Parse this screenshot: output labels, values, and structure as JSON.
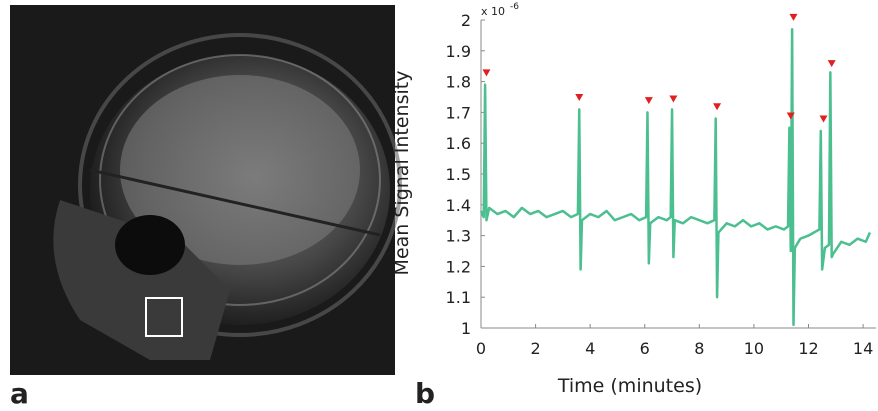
{
  "chart_data": {
    "type": "line",
    "panel_labels": [
      "a",
      "b"
    ],
    "xlabel": "Time (minutes)",
    "ylabel": "Mean Signal Intensity",
    "axis_multiplier": {
      "base": "x 10",
      "exponent": "-6"
    },
    "color": "#4cbf90",
    "xlim": [
      0,
      14.4
    ],
    "xticks": [
      0,
      2,
      4,
      6,
      8,
      10,
      12,
      14
    ],
    "ylim": [
      1,
      2
    ],
    "yticks": [
      1,
      1.1,
      1.2,
      1.3,
      1.4,
      1.5,
      1.6,
      1.7,
      1.8,
      1.9,
      2
    ],
    "x": [
      0,
      0.1,
      0.15,
      0.2,
      0.3,
      0.6,
      0.9,
      1.2,
      1.5,
      1.8,
      2.1,
      2.4,
      2.7,
      3.0,
      3.3,
      3.55,
      3.6,
      3.65,
      3.7,
      4.0,
      4.3,
      4.6,
      4.9,
      5.2,
      5.5,
      5.8,
      6.05,
      6.1,
      6.15,
      6.2,
      6.5,
      6.8,
      6.95,
      7.0,
      7.05,
      7.1,
      7.4,
      7.7,
      8.0,
      8.3,
      8.55,
      8.6,
      8.65,
      8.7,
      9.0,
      9.3,
      9.6,
      9.9,
      10.2,
      10.5,
      10.8,
      11.1,
      11.25,
      11.3,
      11.35,
      11.4,
      11.45,
      11.5,
      11.7,
      12.0,
      12.2,
      12.4,
      12.45,
      12.5,
      12.6,
      12.75,
      12.8,
      12.85,
      12.9,
      13.2,
      13.5,
      13.8,
      14.1,
      14.25
    ],
    "values": [
      1.38,
      1.36,
      1.79,
      1.35,
      1.39,
      1.37,
      1.38,
      1.36,
      1.39,
      1.37,
      1.38,
      1.36,
      1.37,
      1.38,
      1.36,
      1.37,
      1.71,
      1.19,
      1.35,
      1.37,
      1.36,
      1.38,
      1.35,
      1.36,
      1.37,
      1.35,
      1.36,
      1.7,
      1.21,
      1.34,
      1.36,
      1.35,
      1.36,
      1.71,
      1.23,
      1.35,
      1.34,
      1.36,
      1.35,
      1.34,
      1.35,
      1.68,
      1.1,
      1.31,
      1.34,
      1.33,
      1.35,
      1.33,
      1.34,
      1.32,
      1.33,
      1.32,
      1.33,
      1.65,
      1.25,
      1.97,
      1.01,
      1.26,
      1.29,
      1.3,
      1.31,
      1.32,
      1.64,
      1.19,
      1.26,
      1.27,
      1.83,
      1.23,
      1.24,
      1.28,
      1.27,
      1.29,
      1.28,
      1.31
    ],
    "peak_markers": {
      "color": "#e02020",
      "x": [
        0.2,
        3.6,
        6.15,
        7.05,
        8.65,
        11.35,
        11.45,
        12.55,
        12.85
      ],
      "values": [
        1.83,
        1.75,
        1.74,
        1.745,
        1.72,
        1.69,
        2.01,
        1.68,
        1.86
      ]
    }
  }
}
